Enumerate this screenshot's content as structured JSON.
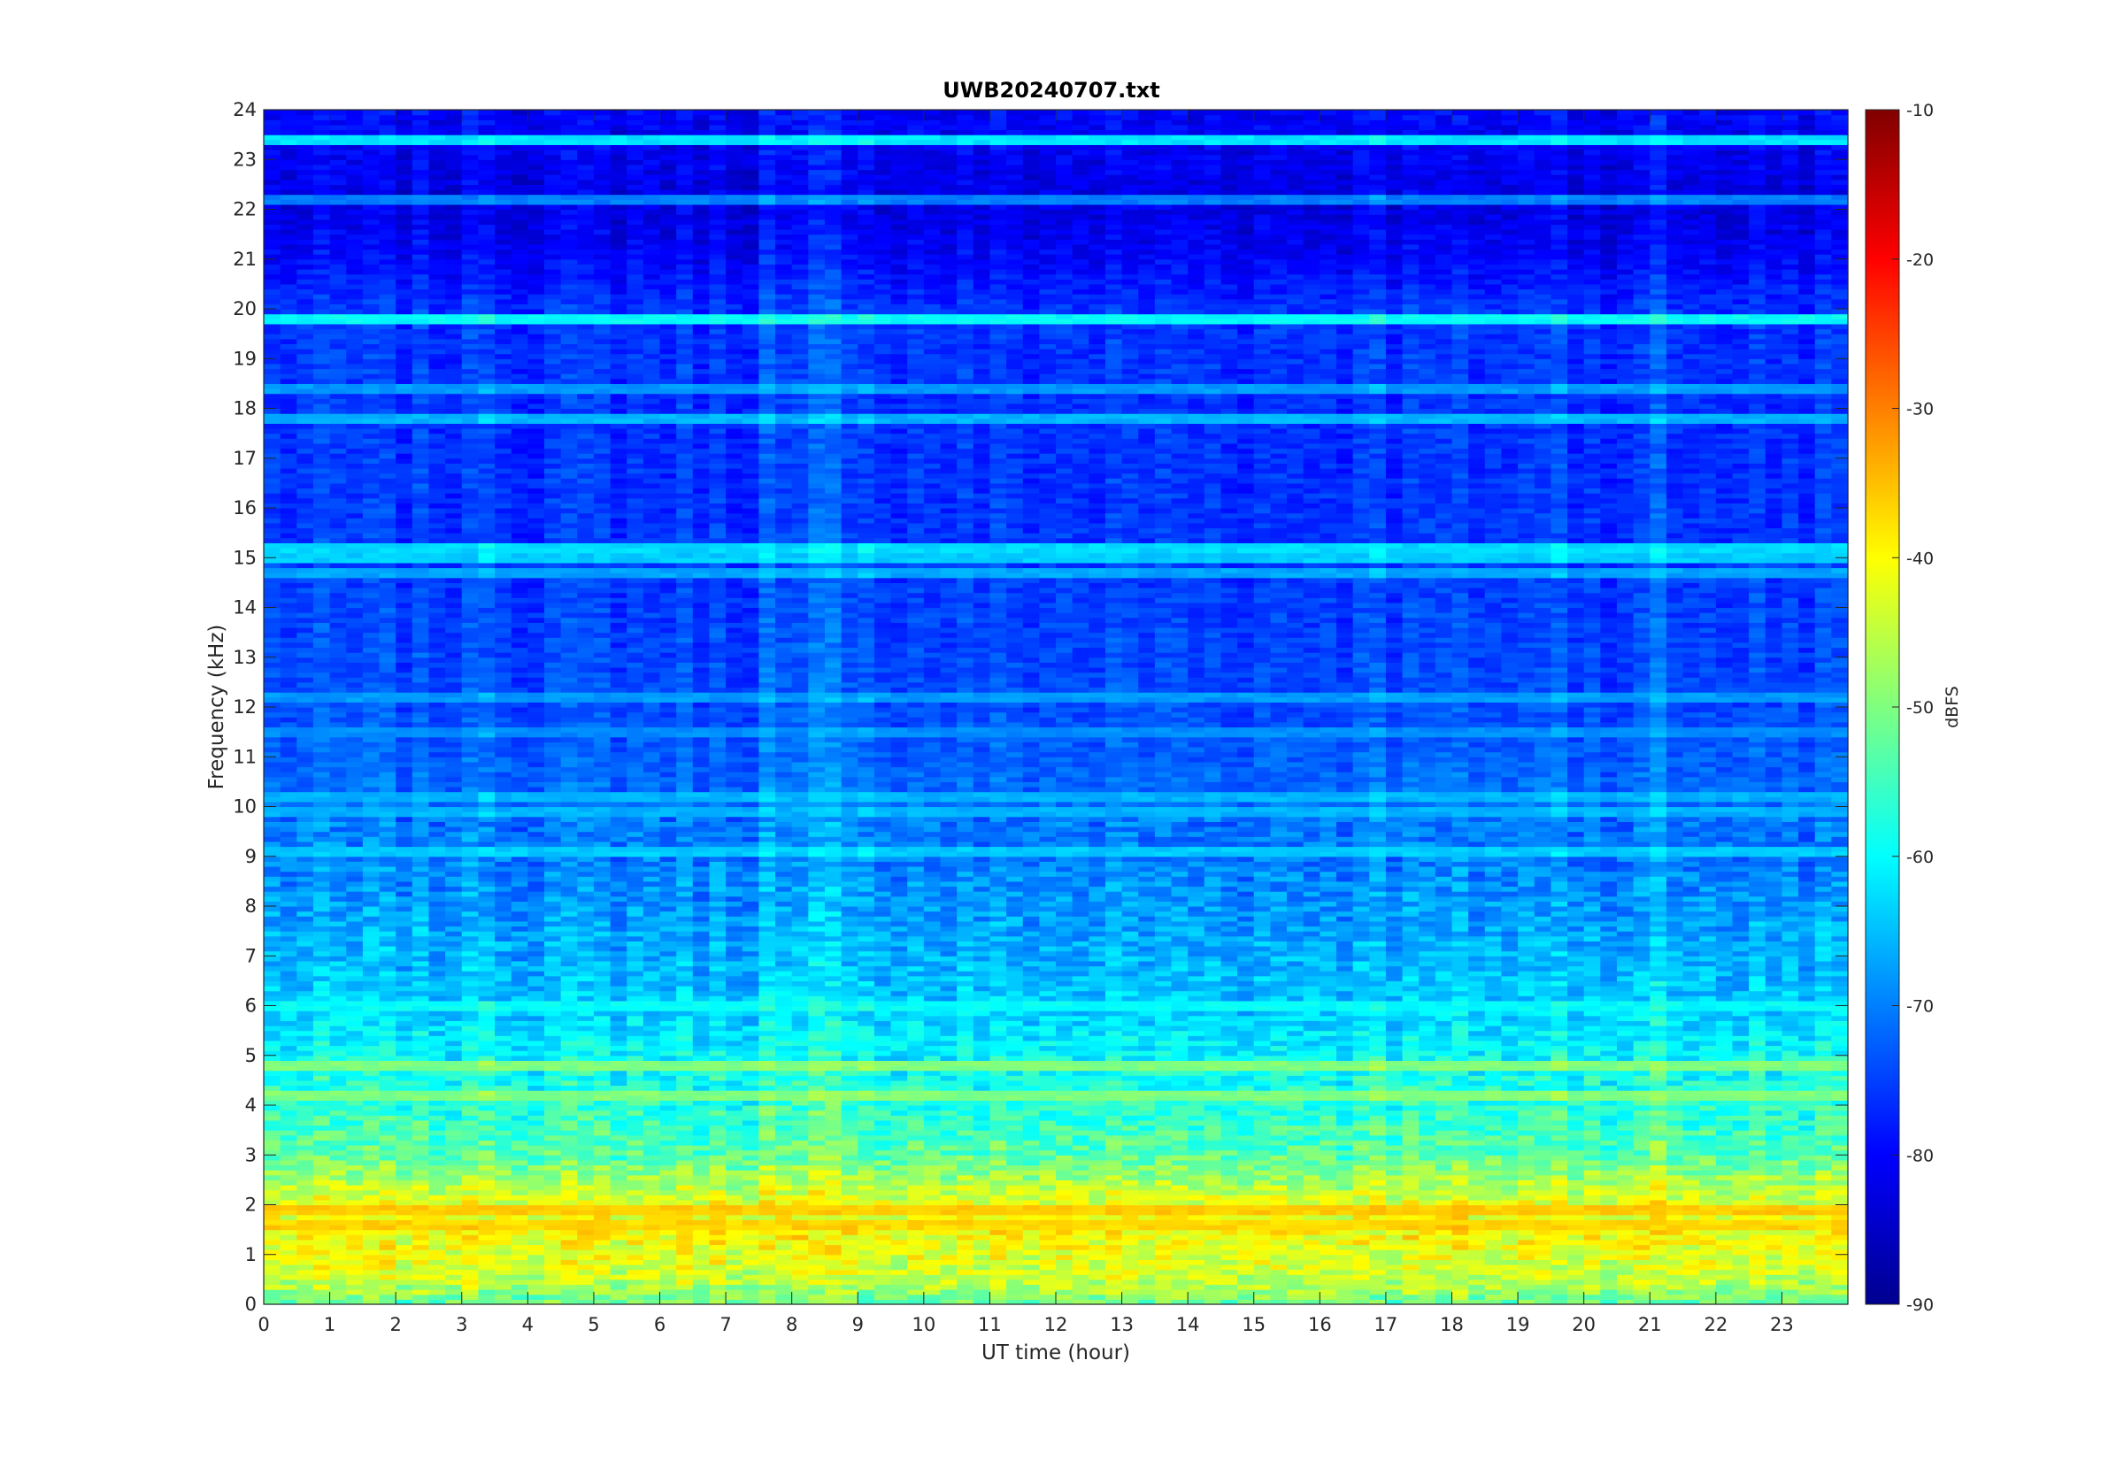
{
  "chart_data": {
    "type": "heatmap",
    "title": "UWB20240707.txt",
    "xlabel": "UT time (hour)",
    "ylabel": "Frequency (kHz)",
    "xlim": [
      0,
      24
    ],
    "ylim": [
      0,
      24
    ],
    "x_ticks": [
      0,
      1,
      2,
      3,
      4,
      5,
      6,
      7,
      8,
      9,
      10,
      11,
      12,
      13,
      14,
      15,
      16,
      17,
      18,
      19,
      20,
      21,
      22,
      23
    ],
    "y_ticks": [
      0,
      1,
      2,
      3,
      4,
      5,
      6,
      7,
      8,
      9,
      10,
      11,
      12,
      13,
      14,
      15,
      16,
      17,
      18,
      19,
      20,
      21,
      22,
      23,
      24
    ],
    "colormap": "jet",
    "colorbar": {
      "label": "dBFS",
      "range": [
        -90,
        -10
      ],
      "ticks": [
        -90,
        -80,
        -70,
        -60,
        -50,
        -40,
        -30,
        -20,
        -10
      ]
    },
    "base_level_profile": [
      {
        "freq_khz": 0.0,
        "dbfs": -52
      },
      {
        "freq_khz": 0.5,
        "dbfs": -44
      },
      {
        "freq_khz": 1.0,
        "dbfs": -42
      },
      {
        "freq_khz": 1.5,
        "dbfs": -40
      },
      {
        "freq_khz": 2.0,
        "dbfs": -42
      },
      {
        "freq_khz": 2.5,
        "dbfs": -47
      },
      {
        "freq_khz": 3.0,
        "dbfs": -53
      },
      {
        "freq_khz": 4.0,
        "dbfs": -57
      },
      {
        "freq_khz": 5.0,
        "dbfs": -60
      },
      {
        "freq_khz": 6.0,
        "dbfs": -64
      },
      {
        "freq_khz": 7.0,
        "dbfs": -66
      },
      {
        "freq_khz": 8.0,
        "dbfs": -68
      },
      {
        "freq_khz": 9.0,
        "dbfs": -70
      },
      {
        "freq_khz": 10.0,
        "dbfs": -71
      },
      {
        "freq_khz": 12.0,
        "dbfs": -74
      },
      {
        "freq_khz": 14.0,
        "dbfs": -75
      },
      {
        "freq_khz": 16.0,
        "dbfs": -76
      },
      {
        "freq_khz": 18.0,
        "dbfs": -76
      },
      {
        "freq_khz": 20.0,
        "dbfs": -76
      },
      {
        "freq_khz": 21.0,
        "dbfs": -80
      },
      {
        "freq_khz": 22.0,
        "dbfs": -82
      },
      {
        "freq_khz": 24.0,
        "dbfs": -80
      }
    ],
    "persistent_lines_khz": [
      {
        "freq_khz": 23.4,
        "dbfs": -62
      },
      {
        "freq_khz": 22.2,
        "dbfs": -70
      },
      {
        "freq_khz": 19.8,
        "dbfs": -60
      },
      {
        "freq_khz": 18.4,
        "dbfs": -68
      },
      {
        "freq_khz": 17.8,
        "dbfs": -66
      },
      {
        "freq_khz": 15.2,
        "dbfs": -63
      },
      {
        "freq_khz": 15.0,
        "dbfs": -64
      },
      {
        "freq_khz": 14.7,
        "dbfs": -67
      },
      {
        "freq_khz": 12.2,
        "dbfs": -68
      },
      {
        "freq_khz": 11.5,
        "dbfs": -69
      },
      {
        "freq_khz": 10.2,
        "dbfs": -66
      },
      {
        "freq_khz": 9.9,
        "dbfs": -66
      },
      {
        "freq_khz": 9.1,
        "dbfs": -64
      },
      {
        "freq_khz": 6.0,
        "dbfs": -60
      },
      {
        "freq_khz": 4.8,
        "dbfs": -50
      },
      {
        "freq_khz": 4.2,
        "dbfs": -50
      },
      {
        "freq_khz": 1.9,
        "dbfs": -36
      },
      {
        "freq_khz": 1.6,
        "dbfs": -37
      }
    ],
    "vertical_features_hour": [
      3.3,
      7.7,
      8.5,
      9.1,
      16.9,
      19.6,
      21.2
    ]
  }
}
